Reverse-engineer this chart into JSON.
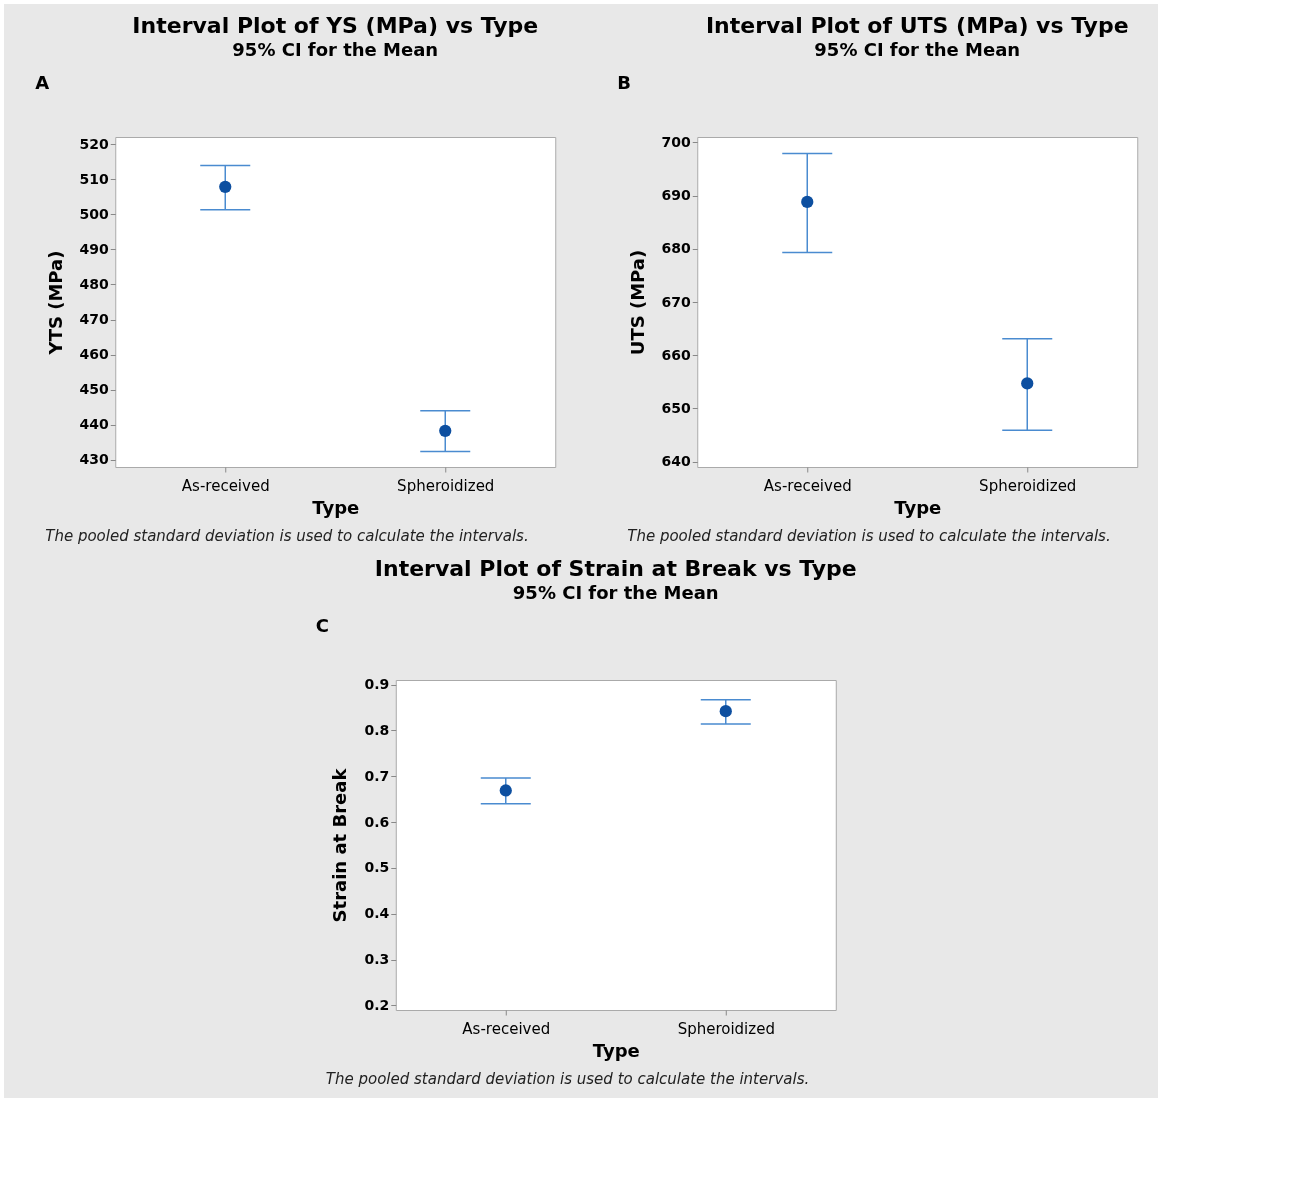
{
  "chart_data": [
    {
      "type": "scatter",
      "title": "Interval Plot of YS (MPa) vs Type",
      "subtitle": "95% CI for the Mean",
      "xlabel": "Type",
      "ylabel": "YTS (MPa)",
      "annotations": [
        "A",
        "The pooled standard deviation is used to calculate the intervals."
      ],
      "categories": [
        "As-received",
        "Spheroidized"
      ],
      "marker": "circle",
      "series": [
        {
          "color": "#0d4fa0",
          "values": [
            507.8,
            438.3
          ],
          "errors": [
            [
              501.3,
              513.9
            ],
            [
              432.4,
              444.0
            ]
          ]
        }
      ],
      "ylim": [
        428,
        522
      ],
      "yticks": [
        430,
        440,
        450,
        460,
        470,
        480,
        490,
        500,
        510,
        520
      ]
    },
    {
      "type": "scatter",
      "title": "Interval Plot of UTS (MPa) vs Type",
      "subtitle": "95% CI for the Mean",
      "xlabel": "Type",
      "ylabel": "UTS (MPa)",
      "annotations": [
        "B",
        "The pooled standard deviation is used to calculate the intervals."
      ],
      "categories": [
        "As-received",
        "Spheroidized"
      ],
      "marker": "circle",
      "series": [
        {
          "color": "#0d4fa0",
          "values": [
            688.8,
            654.7
          ],
          "errors": [
            [
              679.3,
              697.9
            ],
            [
              645.9,
              663.1
            ]
          ]
        }
      ],
      "ylim": [
        639,
        701
      ],
      "yticks": [
        640,
        650,
        660,
        670,
        680,
        690,
        700
      ]
    },
    {
      "type": "scatter",
      "title": "Interval Plot of Strain at Break vs Type",
      "subtitle": "95% CI for the Mean",
      "xlabel": "Type",
      "ylabel": "Strain at Break",
      "annotations": [
        "C",
        "The pooled standard deviation is used to calculate the intervals."
      ],
      "categories": [
        "As-received",
        "Spheroidized"
      ],
      "marker": "circle",
      "series": [
        {
          "color": "#0d4fa0",
          "values": [
            0.669,
            0.842
          ],
          "errors": [
            [
              0.64,
              0.696
            ],
            [
              0.814,
              0.867
            ]
          ]
        }
      ],
      "ylim": [
        0.19,
        0.91
      ],
      "yticks": [
        0.2,
        0.3,
        0.4,
        0.5,
        0.6,
        0.7,
        0.8,
        0.9
      ]
    }
  ]
}
